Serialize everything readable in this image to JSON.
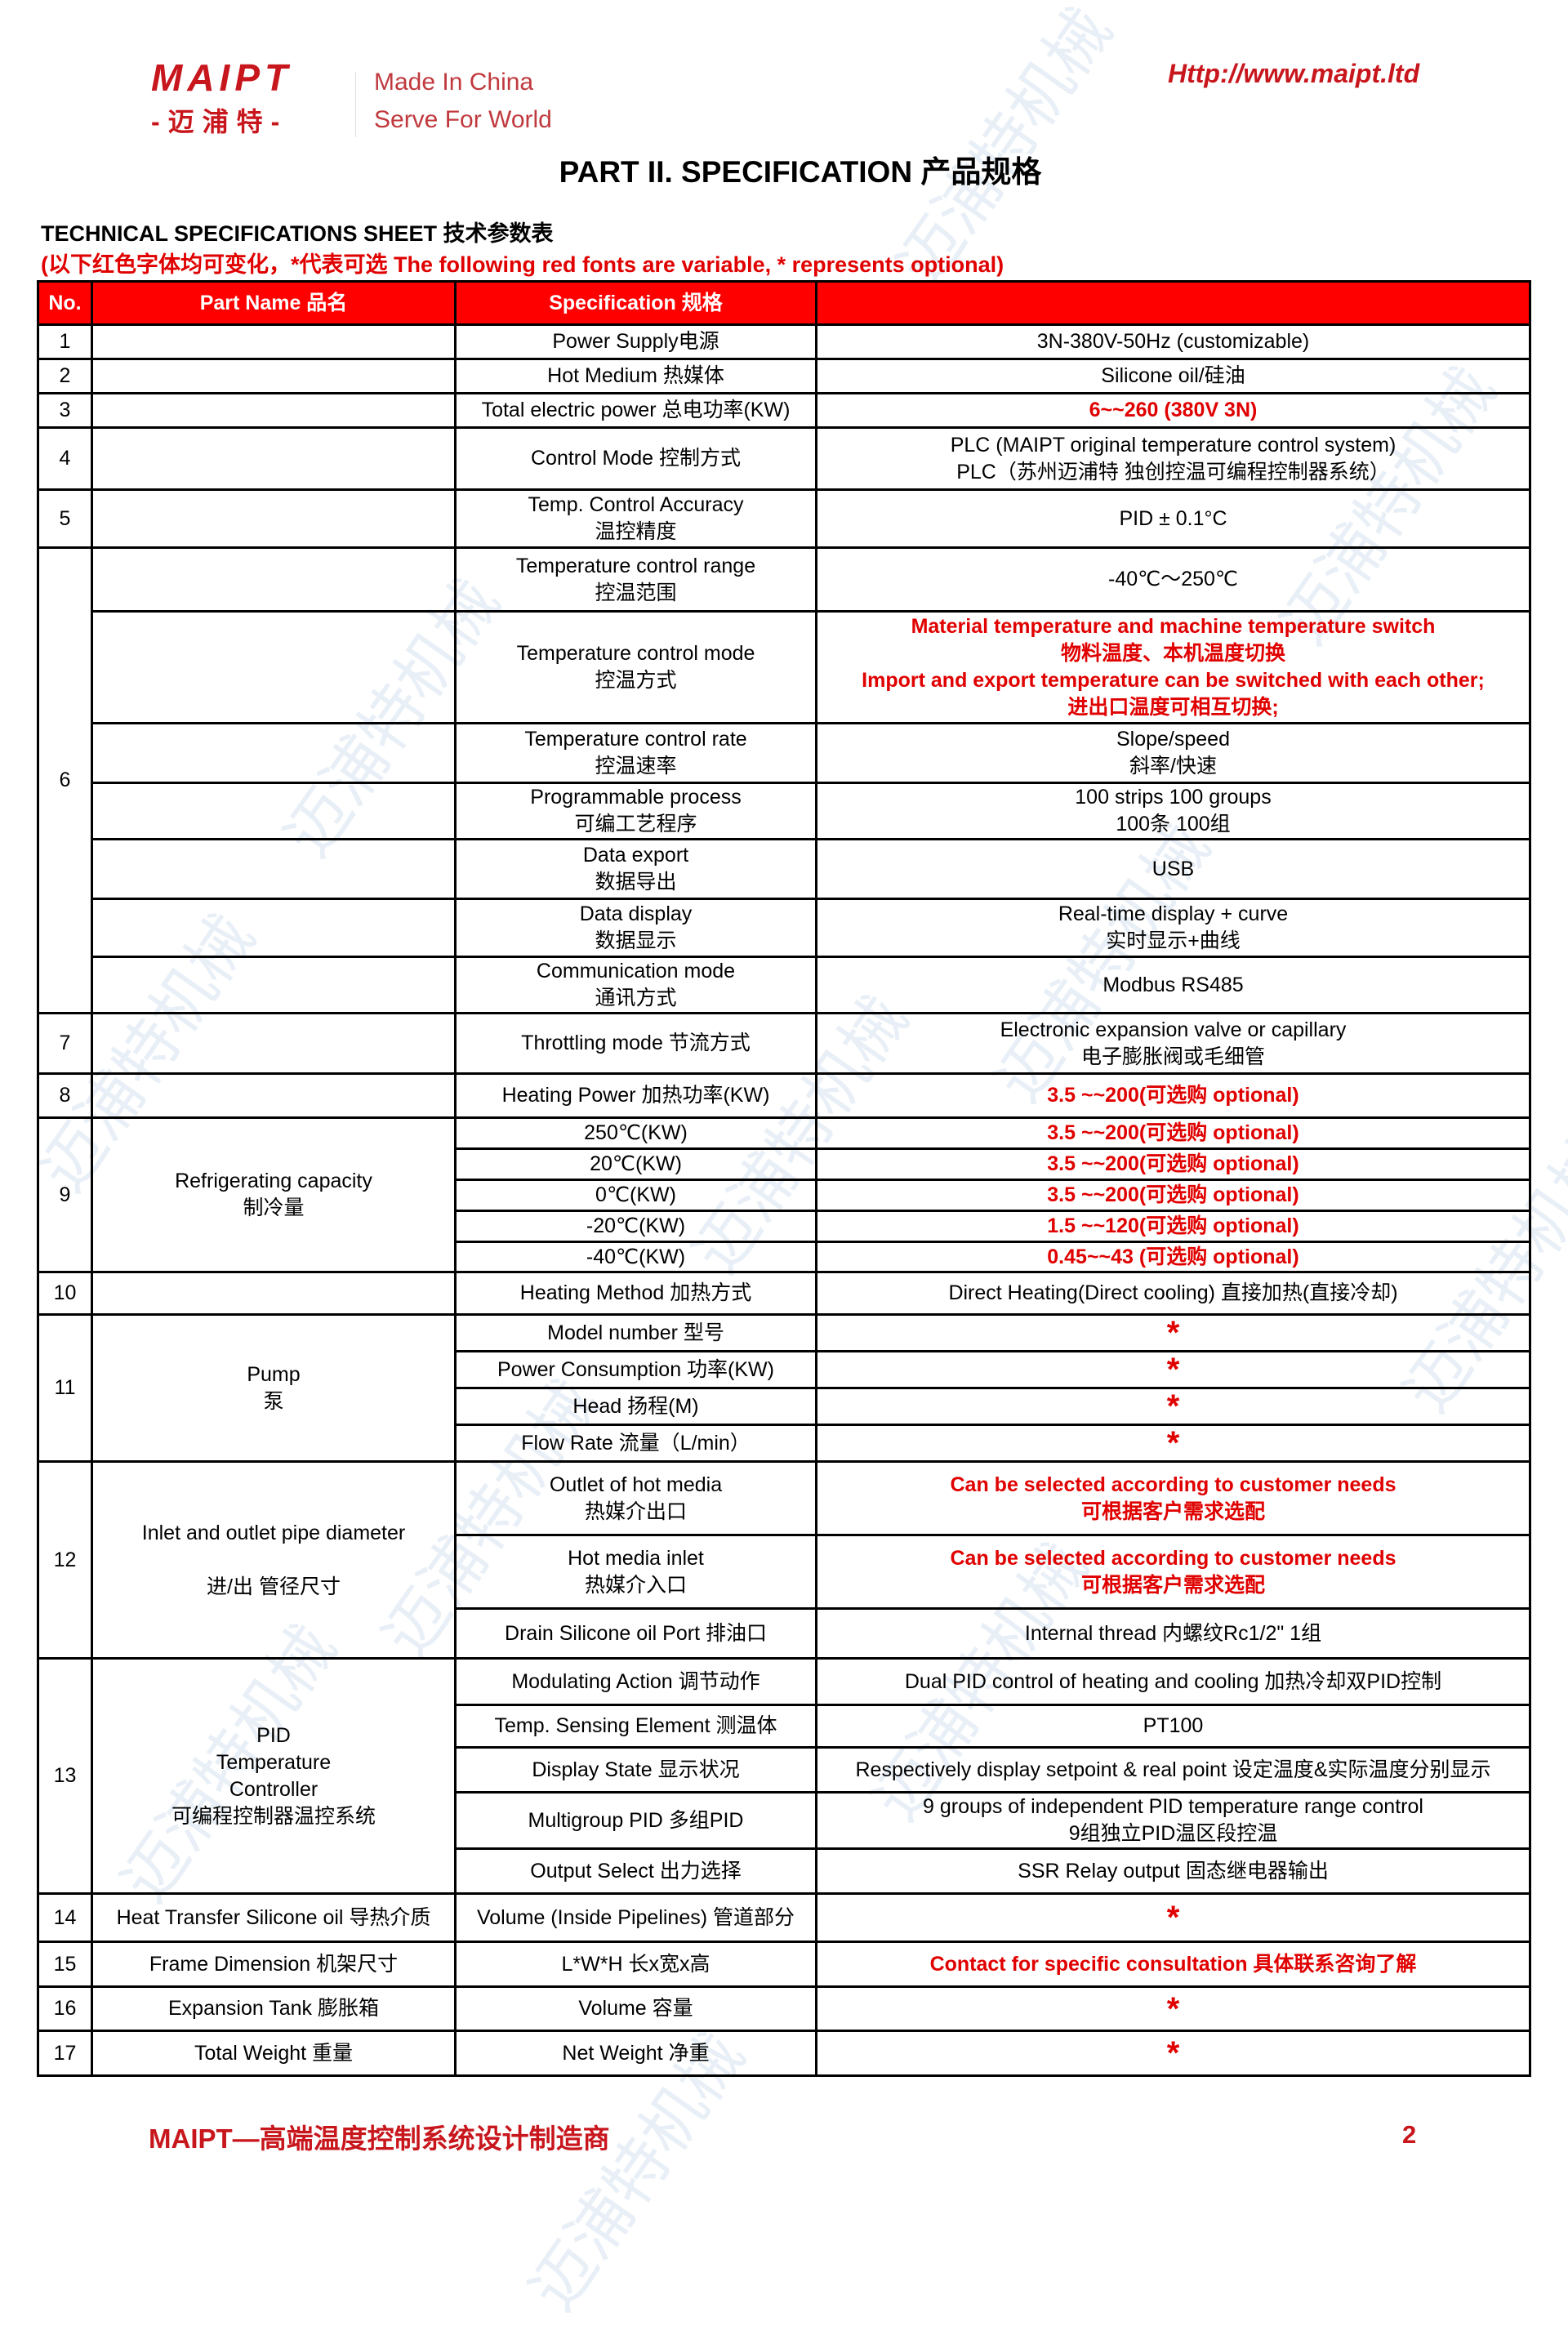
{
  "header": {
    "logo_en": "MAIPT",
    "logo_cn": "-迈浦特-",
    "slogan_1": "Made In China",
    "slogan_2": "Serve For World",
    "url": "Http://www.maipt.ltd"
  },
  "title": "PART II. SPECIFICATION 产品规格",
  "subtitle": "TECHNICAL SPECIFICATIONS SHEET 技术参数表",
  "note": "(以下红色字体均可变化，*代表可选  The following red fonts are variable, * represents optional)",
  "colors": {
    "accent": "#ff0000",
    "brand": "#c8161d",
    "variable_text": "#e00000"
  },
  "watermark": "迈浦特机械",
  "table": {
    "headers": [
      "No.",
      "Part Name 品名",
      "Specification 规格",
      ""
    ],
    "groups": [
      {
        "no": "1",
        "sub": [
          {
            "part": "",
            "spec": "Power Supply电源",
            "value": "3N-380V-50Hz (customizable)"
          }
        ]
      },
      {
        "no": "2",
        "sub": [
          {
            "part": "",
            "spec": "Hot Medium 热媒体",
            "value": "Silicone oil/硅油"
          }
        ]
      },
      {
        "no": "3",
        "sub": [
          {
            "part": "",
            "spec": "Total electric power 总电功率(KW)",
            "value": "6~~260  (380V 3N)",
            "red": true
          }
        ]
      },
      {
        "no": "4",
        "sub": [
          {
            "part": "",
            "spec": "Control Mode 控制方式",
            "value": "PLC (MAIPT original temperature control system)\nPLC（苏州迈浦特 独创控温可编程控制器系统）"
          }
        ]
      },
      {
        "no": "5",
        "sub": [
          {
            "part": "",
            "spec": "Temp. Control Accuracy\n温控精度",
            "value": "PID ± 0.1°C"
          }
        ]
      },
      {
        "no": "6",
        "sub": [
          {
            "part": "",
            "spec": "Temperature control range\n控温范围",
            "value": "-40℃～250℃"
          },
          {
            "part": "",
            "spec": "Temperature control mode\n控温方式",
            "value": "Material temperature and machine temperature switch\n物料温度、本机温度切换\nImport and export temperature can be switched with each other;\n进出口温度可相互切换;",
            "red": true
          },
          {
            "part": "",
            "spec": "Temperature control rate\n控温速率",
            "value": "Slope/speed\n斜率/快速"
          },
          {
            "part": "",
            "spec": "Programmable process\n可编工艺程序",
            "value": "100 strips 100 groups\n100条 100组"
          },
          {
            "part": "",
            "spec": "Data export\n数据导出",
            "value": "USB"
          },
          {
            "part": "",
            "spec": "Data display\n数据显示",
            "value": "Real-time display + curve\n实时显示+曲线"
          },
          {
            "part": "",
            "spec": "Communication mode\n通讯方式",
            "value": "Modbus RS485"
          }
        ]
      },
      {
        "no": "7",
        "sub": [
          {
            "part": "",
            "spec": "Throttling mode 节流方式",
            "value": "Electronic expansion valve or capillary\n电子膨胀阀或毛细管"
          }
        ]
      },
      {
        "no": "8",
        "sub": [
          {
            "part": "",
            "spec": "Heating Power 加热功率(KW)",
            "value": "3.5 ~~200(可选购 optional)",
            "red": true
          }
        ]
      },
      {
        "no": "9",
        "part": "Refrigerating capacity\n制冷量",
        "sub": [
          {
            "spec": "250℃(KW)",
            "value": "3.5 ~~200(可选购 optional)",
            "red": true
          },
          {
            "spec": "20℃(KW)",
            "value": "3.5 ~~200(可选购 optional)",
            "red": true
          },
          {
            "spec": "0℃(KW)",
            "value": "3.5 ~~200(可选购 optional)",
            "red": true
          },
          {
            "spec": "-20℃(KW)",
            "value": "1.5 ~~120(可选购 optional)",
            "red": true
          },
          {
            "spec": "-40℃(KW)",
            "value": "0.45~~43 (可选购 optional)",
            "red": true
          }
        ]
      },
      {
        "no": "10",
        "sub": [
          {
            "part": "",
            "spec": "Heating Method 加热方式",
            "value": "Direct Heating(Direct cooling) 直接加热(直接冷却)"
          }
        ]
      },
      {
        "no": "11",
        "part": "Pump\n泵",
        "sub": [
          {
            "spec": "Model number 型号",
            "value": "*",
            "star": true
          },
          {
            "spec": "Power Consumption 功率(KW)",
            "value": "*",
            "star": true
          },
          {
            "spec": "Head 扬程(M)",
            "value": "*",
            "star": true
          },
          {
            "spec": "Flow Rate 流量（L/min）",
            "value": "*",
            "star": true
          }
        ]
      },
      {
        "no": "12",
        "part": "Inlet and outlet pipe diameter\n\n进/出 管径尺寸",
        "sub": [
          {
            "spec": "Outlet of hot media\n热媒介出口",
            "value": "Can be selected according to customer needs\n可根据客户需求选配",
            "red": true
          },
          {
            "spec": "Hot media inlet\n热媒介入口",
            "value": "Can be selected according to customer needs\n可根据客户需求选配",
            "red": true
          },
          {
            "spec": "Drain Silicone oil Port 排油口",
            "value": "Internal thread 内螺纹Rc1/2\"      1组"
          }
        ]
      },
      {
        "no": "13",
        "part": "PID\nTemperature\nController\n可编程控制器温控系统",
        "sub": [
          {
            "spec": "Modulating Action 调节动作",
            "value": "Dual PID control of heating and cooling 加热冷却双PID控制"
          },
          {
            "spec": "Temp. Sensing Element 测温体",
            "value": "PT100"
          },
          {
            "spec": "Display State 显示状况",
            "value": "Respectively display setpoint & real point 设定温度&实际温度分别显示"
          },
          {
            "spec": "Multigroup PID 多组PID",
            "value": "9 groups of independent PID temperature range control\n9组独立PID温区段控温"
          },
          {
            "spec": "Output Select 出力选择",
            "value": "SSR Relay output  固态继电器输出"
          }
        ]
      },
      {
        "no": "14",
        "sub": [
          {
            "part": "Heat Transfer Silicone oil 导热介质",
            "spec": "Volume (Inside Pipelines) 管道部分",
            "value": "*",
            "star": true
          }
        ]
      },
      {
        "no": "15",
        "sub": [
          {
            "part": "Frame Dimension 机架尺寸",
            "spec": "L*W*H 长x宽x高",
            "value": "Contact for specific consultation   具体联系咨询了解",
            "red": true
          }
        ]
      },
      {
        "no": "16",
        "sub": [
          {
            "part": "Expansion Tank 膨胀箱",
            "spec": "Volume 容量",
            "value": "*",
            "star": true
          }
        ]
      },
      {
        "no": "17",
        "sub": [
          {
            "part": "Total Weight 重量",
            "spec": "Net Weight 净重",
            "value": "*",
            "star": true
          }
        ]
      }
    ]
  },
  "footer": {
    "text": "MAIPT—高端温度控制系统设计制造商",
    "page": "2"
  }
}
